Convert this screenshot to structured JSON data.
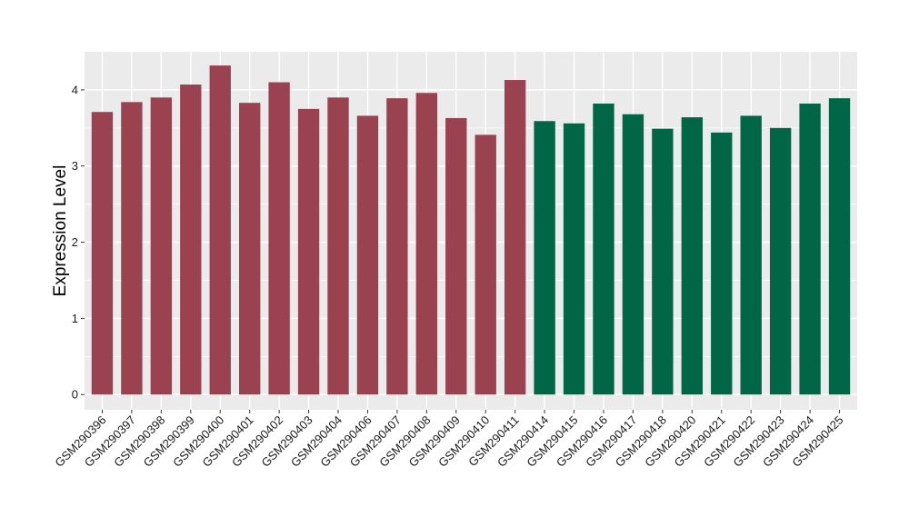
{
  "chart_data": {
    "type": "bar",
    "title": "",
    "xlabel": "",
    "ylabel": "Expression Level",
    "ylim": [
      -0.2,
      4.5
    ],
    "yticks": [
      0,
      1,
      2,
      3,
      4
    ],
    "grid": true,
    "legend": "none",
    "categories": [
      "GSM290396",
      "GSM290397",
      "GSM290398",
      "GSM290399",
      "GSM290400",
      "GSM290401",
      "GSM290402",
      "GSM290403",
      "GSM290404",
      "GSM290406",
      "GSM290407",
      "GSM290408",
      "GSM290409",
      "GSM290410",
      "GSM290411",
      "GSM290414",
      "GSM290415",
      "GSM290416",
      "GSM290417",
      "GSM290418",
      "GSM290420",
      "GSM290421",
      "GSM290422",
      "GSM290423",
      "GSM290424",
      "GSM290425"
    ],
    "values": [
      3.71,
      3.84,
      3.9,
      4.07,
      4.32,
      3.83,
      4.1,
      3.75,
      3.9,
      3.66,
      3.89,
      3.96,
      3.63,
      3.41,
      4.13,
      3.59,
      3.56,
      3.82,
      3.68,
      3.49,
      3.64,
      3.44,
      3.66,
      3.5,
      3.82,
      3.89
    ],
    "group_sizes": [
      15,
      11
    ],
    "colors": {
      "group1": "#9a4250",
      "group2": "#006645",
      "panel_background": "#ebebeb",
      "grid": "#ffffff"
    }
  }
}
